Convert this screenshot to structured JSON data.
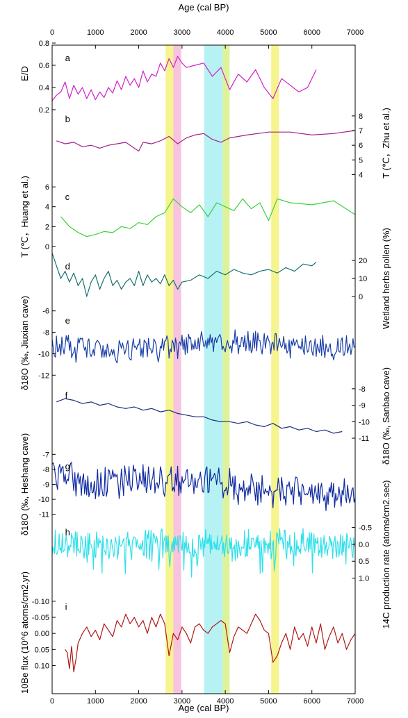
{
  "chart_data": {
    "type": "line",
    "x_axis": {
      "label": "Age (cal BP)",
      "range": [
        0,
        7000
      ],
      "ticks": [
        "0",
        "1000",
        "2000",
        "3000",
        "4000",
        "5000",
        "6000",
        "7000"
      ],
      "position": "top and bottom"
    },
    "grid": false,
    "highlight_bands": [
      {
        "range": [
          2620,
          2800
        ],
        "color": "#f4f27a"
      },
      {
        "range": [
          2800,
          2980
        ],
        "color": "#f7b8d8"
      },
      {
        "range": [
          3510,
          3940
        ],
        "color": "#a9f0f2"
      },
      {
        "range": [
          3940,
          4100
        ],
        "color": "#d8f08a"
      },
      {
        "range": [
          5060,
          5240
        ],
        "color": "#f4f27a"
      }
    ],
    "panels": [
      {
        "letter": "a",
        "axis_side": "left",
        "ylabel": "E/D",
        "ylim": [
          0.25,
          0.8
        ],
        "ticks": [
          "0.2",
          "0.4",
          "0.6",
          "0.8"
        ],
        "color": "#d020c8",
        "x": [
          0,
          100,
          200,
          300,
          400,
          500,
          600,
          700,
          800,
          900,
          1000,
          1100,
          1200,
          1300,
          1400,
          1500,
          1600,
          1700,
          1800,
          1900,
          2000,
          2100,
          2200,
          2300,
          2400,
          2500,
          2600,
          2700,
          2800,
          2900,
          3000,
          3100,
          3300,
          3500,
          3700,
          3900,
          4100,
          4300,
          4500,
          4700,
          4900,
          5100,
          5300,
          5500,
          5700,
          5900,
          6100
        ],
        "y": [
          0.28,
          0.33,
          0.36,
          0.45,
          0.3,
          0.42,
          0.34,
          0.4,
          0.3,
          0.38,
          0.29,
          0.36,
          0.31,
          0.4,
          0.35,
          0.46,
          0.38,
          0.5,
          0.42,
          0.48,
          0.4,
          0.55,
          0.45,
          0.52,
          0.5,
          0.62,
          0.55,
          0.66,
          0.58,
          0.68,
          0.62,
          0.58,
          0.6,
          0.62,
          0.5,
          0.58,
          0.38,
          0.52,
          0.45,
          0.56,
          0.4,
          0.3,
          0.48,
          0.42,
          0.36,
          0.4,
          0.56
        ]
      },
      {
        "letter": "b",
        "axis_side": "right",
        "ylabel": "T (℃，Zhu et al.)",
        "ylim": [
          3.5,
          8.8
        ],
        "ticks": [
          "4",
          "5",
          "6",
          "7",
          "8"
        ],
        "color": "#a0208a",
        "x": [
          100,
          300,
          500,
          700,
          900,
          1100,
          1300,
          1500,
          1700,
          1900,
          2000,
          2100,
          2300,
          2500,
          2700,
          2900,
          3100,
          3300,
          3500,
          3700,
          3900,
          4100,
          4500,
          5000,
          5500,
          6000,
          6500,
          7000
        ],
        "y": [
          6.3,
          6.1,
          6.2,
          5.9,
          6.0,
          5.8,
          6.0,
          6.1,
          6.2,
          5.8,
          5.6,
          6.2,
          6.1,
          6.3,
          6.6,
          6.1,
          6.5,
          6.7,
          6.8,
          6.4,
          6.2,
          6.5,
          6.7,
          6.9,
          6.9,
          6.7,
          6.8,
          7.0
        ]
      },
      {
        "letter": "c",
        "axis_side": "left",
        "ylabel": "T (℃，Huang et al.)",
        "ylim": [
          -0.5,
          6.5
        ],
        "ticks": [
          "0",
          "2",
          "4",
          "6"
        ],
        "color": "#3ad13a",
        "x": [
          200,
          400,
          600,
          800,
          1000,
          1200,
          1400,
          1600,
          1800,
          2000,
          2200,
          2400,
          2600,
          2800,
          3000,
          3200,
          3400,
          3600,
          3800,
          4000,
          4200,
          4400,
          4600,
          4800,
          5000,
          5200,
          5500,
          6000,
          6500,
          7000
        ],
        "y": [
          3.0,
          2.0,
          1.4,
          1.0,
          1.2,
          1.5,
          1.4,
          2.0,
          1.8,
          2.4,
          2.2,
          3.0,
          3.4,
          4.8,
          4.0,
          3.4,
          4.2,
          3.0,
          4.4,
          4.0,
          3.6,
          4.8,
          3.8,
          4.4,
          2.6,
          4.8,
          4.4,
          4.2,
          4.6,
          3.2
        ]
      },
      {
        "letter": "d",
        "axis_side": "right",
        "ylabel": "Wetland herbs pollen (%)",
        "ylim": [
          -5,
          25
        ],
        "ticks": [
          "0",
          "10",
          "20"
        ],
        "color": "#16706e",
        "x": [
          0,
          100,
          200,
          300,
          400,
          500,
          600,
          700,
          800,
          900,
          1000,
          1100,
          1200,
          1300,
          1400,
          1500,
          1600,
          1700,
          1800,
          1900,
          2000,
          2100,
          2200,
          2300,
          2400,
          2500,
          2600,
          2700,
          2800,
          2900,
          3000,
          3200,
          3400,
          3600,
          3800,
          4000,
          4200,
          4400,
          4600,
          4800,
          5000,
          5200,
          5400,
          5600,
          5800,
          6000,
          6100
        ],
        "y": [
          24,
          17,
          10,
          14,
          8,
          13,
          6,
          10,
          0,
          8,
          12,
          4,
          10,
          14,
          6,
          9,
          4,
          8,
          10,
          6,
          14,
          6,
          12,
          8,
          10,
          7,
          12,
          6,
          9,
          4,
          8,
          9,
          12,
          10,
          14,
          12,
          15,
          13,
          12,
          14,
          15,
          13,
          16,
          14,
          18,
          17,
          19
        ]
      },
      {
        "letter": "e",
        "axis_side": "left",
        "ylabel": "δ18O (‰, Jiuxian cave)",
        "ylim": [
          -12.5,
          -5.5
        ],
        "ticks": [
          "-12",
          "-10",
          "-8",
          "-6"
        ],
        "reversed": true,
        "color": "#1b3fa8",
        "note": "high-resolution record fluctuating around -9.5‰ from 0 to 7000 cal BP"
      },
      {
        "letter": "f",
        "axis_side": "right",
        "ylabel": "δ18O (‰, Sanbao cave)",
        "ylim": [
          -11.8,
          -7.5
        ],
        "ticks": [
          "-11",
          "-10",
          "-9",
          "-8"
        ],
        "reversed": true,
        "color": "#1a2d7a",
        "x": [
          100,
          300,
          500,
          700,
          900,
          1100,
          1300,
          1500,
          1700,
          1900,
          2100,
          2300,
          2500,
          2700,
          2900,
          3100,
          3300,
          3500,
          3700,
          3900,
          4100,
          4300,
          4500,
          4700,
          4900,
          5100,
          5300,
          5500,
          5700,
          5900,
          6100,
          6300,
          6500,
          6700
        ],
        "y": [
          -8.8,
          -8.6,
          -8.7,
          -8.9,
          -8.8,
          -9.0,
          -8.9,
          -9.1,
          -9.2,
          -9.1,
          -9.3,
          -9.2,
          -9.4,
          -9.3,
          -9.5,
          -9.6,
          -9.7,
          -9.7,
          -9.9,
          -10.0,
          -10.0,
          -10.1,
          -10.0,
          -10.2,
          -10.3,
          -10.1,
          -10.4,
          -10.3,
          -10.5,
          -10.4,
          -10.6,
          -10.5,
          -10.7,
          -10.6
        ]
      },
      {
        "letter": "g",
        "axis_side": "left",
        "ylabel": "δ18O (‰, Heshang cave)",
        "ylim": [
          -11.2,
          -6.8
        ],
        "ticks": [
          "-11",
          "-10",
          "-9",
          "-8",
          "-7"
        ],
        "reversed": true,
        "color": "#0f2aa0",
        "note": "high-resolution record trending from about -8.5‰ to -9.8‰ over 0 to 7000 cal BP"
      },
      {
        "letter": "h",
        "axis_side": "right",
        "ylabel": "14C production rate (atoms/cm2.sec)",
        "ylim": [
          1.4,
          -0.8
        ],
        "ticks": [
          "-0.5",
          "0.0",
          "0.5",
          "1.0"
        ],
        "color": "#2ee0ea",
        "note": "high-frequency record oscillating around 0.0 from 0 to 7000 cal BP"
      },
      {
        "letter": "i",
        "axis_side": "left",
        "ylabel": "10Be flux (10^6 atoms/cm2.yr)",
        "ylim": [
          0.125,
          -0.13
        ],
        "ticks": [
          "-0.10",
          "-0.05",
          "0.00",
          "0.05",
          "0.10"
        ],
        "color": "#b01818",
        "x": [
          300,
          350,
          400,
          450,
          500,
          550,
          600,
          700,
          800,
          900,
          1000,
          1100,
          1200,
          1300,
          1400,
          1500,
          1600,
          1700,
          1800,
          1900,
          2000,
          2100,
          2200,
          2300,
          2400,
          2500,
          2600,
          2700,
          2800,
          2900,
          3000,
          3100,
          3200,
          3300,
          3400,
          3500,
          3600,
          3700,
          3800,
          3900,
          4000,
          4100,
          4200,
          4300,
          4400,
          4500,
          4600,
          4700,
          4800,
          4900,
          5000,
          5100,
          5200,
          5300,
          5400,
          5500,
          5600,
          5700,
          5800,
          5900,
          6000,
          6100,
          6200,
          6300,
          6400,
          6500,
          6600,
          6700,
          6800,
          6900,
          7000
        ],
        "y": [
          0.05,
          0.06,
          0.11,
          0.04,
          0.12,
          0.08,
          0.03,
          0.0,
          -0.02,
          0.01,
          -0.01,
          0.02,
          -0.03,
          -0.01,
          0.01,
          -0.04,
          -0.02,
          -0.06,
          -0.03,
          -0.05,
          -0.02,
          -0.04,
          0.0,
          -0.05,
          -0.02,
          -0.06,
          -0.03,
          0.07,
          0.0,
          0.02,
          -0.02,
          0.0,
          0.03,
          -0.02,
          -0.03,
          -0.01,
          0.0,
          -0.02,
          -0.03,
          -0.04,
          -0.03,
          0.06,
          0.01,
          -0.02,
          -0.01,
          0.0,
          -0.03,
          -0.06,
          -0.04,
          -0.01,
          0.0,
          0.09,
          0.07,
          0.03,
          0.0,
          0.05,
          -0.02,
          0.02,
          0.0,
          0.04,
          -0.02,
          0.03,
          -0.03,
          0.05,
          0.01,
          -0.02,
          0.03,
          0.0,
          0.05,
          0.02,
          0.0
        ]
      }
    ]
  }
}
